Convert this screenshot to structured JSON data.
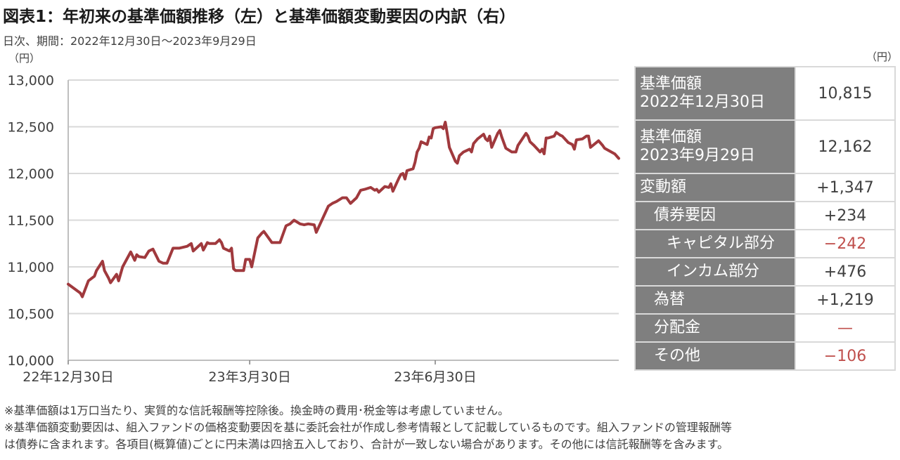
{
  "title": "図表1：年初来の基準価額推移（左）と基準価額変動要因の内訳（右）",
  "subtitle": "日次、期間：2022年12月30日～2023年9月29日",
  "chart_data": {
    "type": "line",
    "ylabel": "（円）",
    "ylim": [
      10000,
      13000
    ],
    "y_ticks": [
      "10,000",
      "10,500",
      "11,000",
      "11,500",
      "12,000",
      "12,500",
      "13,000"
    ],
    "x_range": [
      "2022-12-30",
      "2023-09-29"
    ],
    "x_ticks": [
      {
        "date": "2022-12-30",
        "label": "22年12月30日"
      },
      {
        "date": "2023-03-30",
        "label": "23年3月30日"
      },
      {
        "date": "2023-06-30",
        "label": "23年6月30日"
      }
    ],
    "grid": true,
    "line_color": "#a0393d",
    "series": [
      {
        "points": [
          [
            "2022-12-30",
            10815
          ],
          [
            "2023-01-05",
            10720
          ],
          [
            "2023-01-06",
            10680
          ],
          [
            "2023-01-09",
            10850
          ],
          [
            "2023-01-12",
            10900
          ],
          [
            "2023-01-13",
            10960
          ],
          [
            "2023-01-16",
            11060
          ],
          [
            "2023-01-17",
            10960
          ],
          [
            "2023-01-19",
            10880
          ],
          [
            "2023-01-20",
            10830
          ],
          [
            "2023-01-23",
            10920
          ],
          [
            "2023-01-24",
            10850
          ],
          [
            "2023-01-26",
            11000
          ],
          [
            "2023-01-30",
            11160
          ],
          [
            "2023-02-01",
            11070
          ],
          [
            "2023-02-02",
            11130
          ],
          [
            "2023-02-03",
            11110
          ],
          [
            "2023-02-06",
            11100
          ],
          [
            "2023-02-08",
            11170
          ],
          [
            "2023-02-10",
            11190
          ],
          [
            "2023-02-13",
            11060
          ],
          [
            "2023-02-15",
            11040
          ],
          [
            "2023-02-17",
            11040
          ],
          [
            "2023-02-20",
            11200
          ],
          [
            "2023-02-23",
            11200
          ],
          [
            "2023-02-27",
            11220
          ],
          [
            "2023-03-01",
            11250
          ],
          [
            "2023-03-02",
            11170
          ],
          [
            "2023-03-06",
            11250
          ],
          [
            "2023-03-07",
            11180
          ],
          [
            "2023-03-09",
            11260
          ],
          [
            "2023-03-10",
            11250
          ],
          [
            "2023-03-13",
            11250
          ],
          [
            "2023-03-15",
            11290
          ],
          [
            "2023-03-16",
            11260
          ],
          [
            "2023-03-17",
            11200
          ],
          [
            "2023-03-20",
            11170
          ],
          [
            "2023-03-21",
            11200
          ],
          [
            "2023-03-22",
            10980
          ],
          [
            "2023-03-23",
            10960
          ],
          [
            "2023-03-27",
            10960
          ],
          [
            "2023-03-28",
            11080
          ],
          [
            "2023-03-30",
            11080
          ],
          [
            "2023-03-31",
            11000
          ],
          [
            "2023-04-03",
            11310
          ],
          [
            "2023-04-05",
            11360
          ],
          [
            "2023-04-06",
            11380
          ],
          [
            "2023-04-07",
            11350
          ],
          [
            "2023-04-10",
            11260
          ],
          [
            "2023-04-12",
            11260
          ],
          [
            "2023-04-14",
            11260
          ],
          [
            "2023-04-17",
            11440
          ],
          [
            "2023-04-19",
            11460
          ],
          [
            "2023-04-21",
            11500
          ],
          [
            "2023-04-24",
            11460
          ],
          [
            "2023-04-26",
            11450
          ],
          [
            "2023-04-28",
            11460
          ],
          [
            "2023-05-01",
            11450
          ],
          [
            "2023-05-02",
            11370
          ],
          [
            "2023-05-08",
            11650
          ],
          [
            "2023-05-10",
            11680
          ],
          [
            "2023-05-12",
            11700
          ],
          [
            "2023-05-15",
            11740
          ],
          [
            "2023-05-17",
            11740
          ],
          [
            "2023-05-19",
            11680
          ],
          [
            "2023-05-22",
            11740
          ],
          [
            "2023-05-24",
            11820
          ],
          [
            "2023-05-26",
            11830
          ],
          [
            "2023-05-29",
            11850
          ],
          [
            "2023-05-31",
            11820
          ],
          [
            "2023-06-01",
            11830
          ],
          [
            "2023-06-02",
            11800
          ],
          [
            "2023-06-05",
            11860
          ],
          [
            "2023-06-07",
            11850
          ],
          [
            "2023-06-08",
            11890
          ],
          [
            "2023-06-09",
            11810
          ],
          [
            "2023-06-12",
            11950
          ],
          [
            "2023-06-13",
            11990
          ],
          [
            "2023-06-14",
            12000
          ],
          [
            "2023-06-15",
            11940
          ],
          [
            "2023-06-16",
            12030
          ],
          [
            "2023-06-19",
            12050
          ],
          [
            "2023-06-20",
            12120
          ],
          [
            "2023-06-21",
            12230
          ],
          [
            "2023-06-22",
            12270
          ],
          [
            "2023-06-23",
            12340
          ],
          [
            "2023-06-26",
            12310
          ],
          [
            "2023-06-27",
            12390
          ],
          [
            "2023-06-28",
            12380
          ],
          [
            "2023-06-29",
            12480
          ],
          [
            "2023-06-30",
            12490
          ],
          [
            "2023-07-03",
            12500
          ],
          [
            "2023-07-04",
            12480
          ],
          [
            "2023-07-05",
            12550
          ],
          [
            "2023-07-06",
            12420
          ],
          [
            "2023-07-07",
            12280
          ],
          [
            "2023-07-10",
            12130
          ],
          [
            "2023-07-11",
            12110
          ],
          [
            "2023-07-12",
            12190
          ],
          [
            "2023-07-14",
            12230
          ],
          [
            "2023-07-17",
            12260
          ],
          [
            "2023-07-18",
            12230
          ],
          [
            "2023-07-19",
            12320
          ],
          [
            "2023-07-21",
            12370
          ],
          [
            "2023-07-24",
            12420
          ],
          [
            "2023-07-25",
            12370
          ],
          [
            "2023-07-26",
            12350
          ],
          [
            "2023-07-27",
            12400
          ],
          [
            "2023-07-28",
            12280
          ],
          [
            "2023-07-31",
            12430
          ],
          [
            "2023-08-01",
            12460
          ],
          [
            "2023-08-02",
            12390
          ],
          [
            "2023-08-03",
            12330
          ],
          [
            "2023-08-04",
            12270
          ],
          [
            "2023-08-07",
            12230
          ],
          [
            "2023-08-09",
            12230
          ],
          [
            "2023-08-10",
            12300
          ],
          [
            "2023-08-14",
            12430
          ],
          [
            "2023-08-15",
            12400
          ],
          [
            "2023-08-16",
            12340
          ],
          [
            "2023-08-18",
            12300
          ],
          [
            "2023-08-21",
            12230
          ],
          [
            "2023-08-22",
            12260
          ],
          [
            "2023-08-23",
            12210
          ],
          [
            "2023-08-24",
            12380
          ],
          [
            "2023-08-25",
            12380
          ],
          [
            "2023-08-28",
            12400
          ],
          [
            "2023-08-29",
            12440
          ],
          [
            "2023-08-31",
            12410
          ],
          [
            "2023-09-01",
            12400
          ],
          [
            "2023-09-04",
            12330
          ],
          [
            "2023-09-05",
            12320
          ],
          [
            "2023-09-06",
            12310
          ],
          [
            "2023-09-07",
            12260
          ],
          [
            "2023-09-08",
            12360
          ],
          [
            "2023-09-11",
            12370
          ],
          [
            "2023-09-13",
            12400
          ],
          [
            "2023-09-14",
            12400
          ],
          [
            "2023-09-15",
            12280
          ],
          [
            "2023-09-19",
            12350
          ],
          [
            "2023-09-21",
            12300
          ],
          [
            "2023-09-22",
            12270
          ],
          [
            "2023-09-27",
            12210
          ],
          [
            "2023-09-29",
            12162
          ]
        ]
      }
    ]
  },
  "breakdown": {
    "unit": "（円）",
    "rows": [
      {
        "label_line1": "基準価額",
        "label_line2": "2022年12月30日",
        "value": "10,815"
      },
      {
        "label_line1": "基準価額",
        "label_line2": "2023年9月29日",
        "value": "12,162"
      },
      {
        "label": "変動額",
        "value": "+1,347"
      },
      {
        "label": "債券要因",
        "value": "+234"
      },
      {
        "label": "キャピタル部分",
        "value": "−242"
      },
      {
        "label": "インカム部分",
        "value": "+476"
      },
      {
        "label": "為替",
        "value": "+1,219"
      },
      {
        "label": "分配金",
        "value": "—"
      },
      {
        "label": "その他",
        "value": "−106"
      }
    ],
    "negative_color": "#c0504d"
  },
  "notes": [
    "※基準価額は1万口当たり、実質的な信託報酬等控除後。換金時の費用･税金等は考慮していません。",
    "※基準価額変動要因は、組入ファンドの価格変動要因を基に委託会社が作成し参考情報として記載しているものです。組入ファンドの管理報酬等",
    "は債券に含まれます。各項目(概算値)ごとに円未満は四捨五入しており、合計が一致しない場合があります。その他には信託報酬等を含みます。"
  ]
}
